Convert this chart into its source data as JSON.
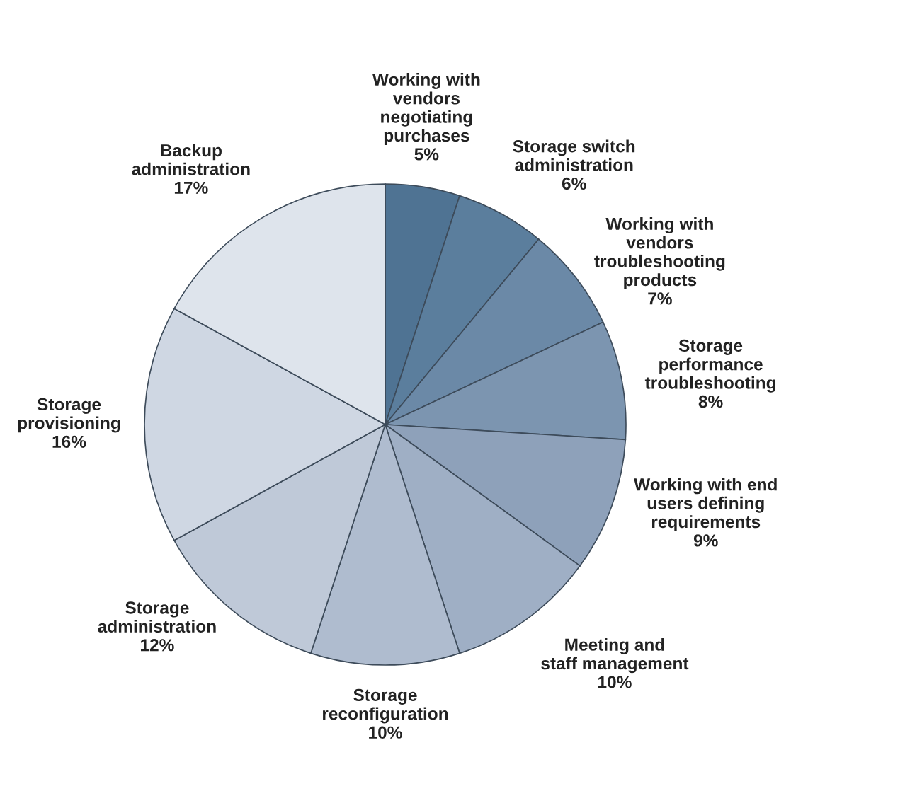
{
  "chart_data": {
    "type": "pie",
    "categories": [
      "Working with\nvendors\nnegotiating\npurchases",
      "Storage switch\nadministration",
      "Working with\nvendors\ntroubleshooting\nproducts",
      "Storage\nperformance\ntroubleshooting",
      "Working with end\nusers defining\nrequirements",
      "Meeting and\nstaff management",
      "Storage\nreconfiguration",
      "Storage\nadministration",
      "Storage\nprovisioning",
      "Backup\nadministration"
    ],
    "values": [
      5,
      6,
      7,
      8,
      9,
      10,
      10,
      12,
      16,
      17
    ],
    "value_labels": [
      "5%",
      "6%",
      "7%",
      "8%",
      "9%",
      "10%",
      "10%",
      "12%",
      "16%",
      "17%"
    ],
    "colors": [
      "#4f7393",
      "#5b7e9d",
      "#6b89a7",
      "#7c95b0",
      "#8ea1ba",
      "#9fafc5",
      "#afbccf",
      "#bfc9d8",
      "#cfd7e3",
      "#dee4ec"
    ]
  }
}
